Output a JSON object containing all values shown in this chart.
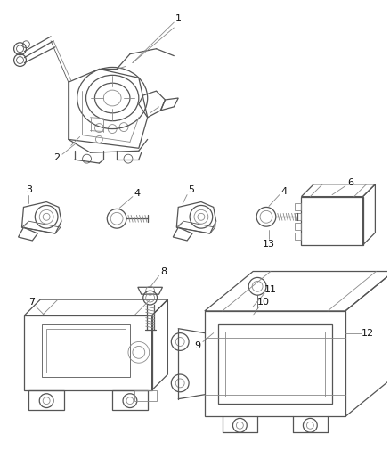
{
  "background_color": "#ffffff",
  "line_color": "#555555",
  "thin_color": "#888888",
  "label_color": "#111111",
  "fig_width": 4.38,
  "fig_height": 5.33,
  "dpi": 100,
  "label_fontsize": 7.5
}
